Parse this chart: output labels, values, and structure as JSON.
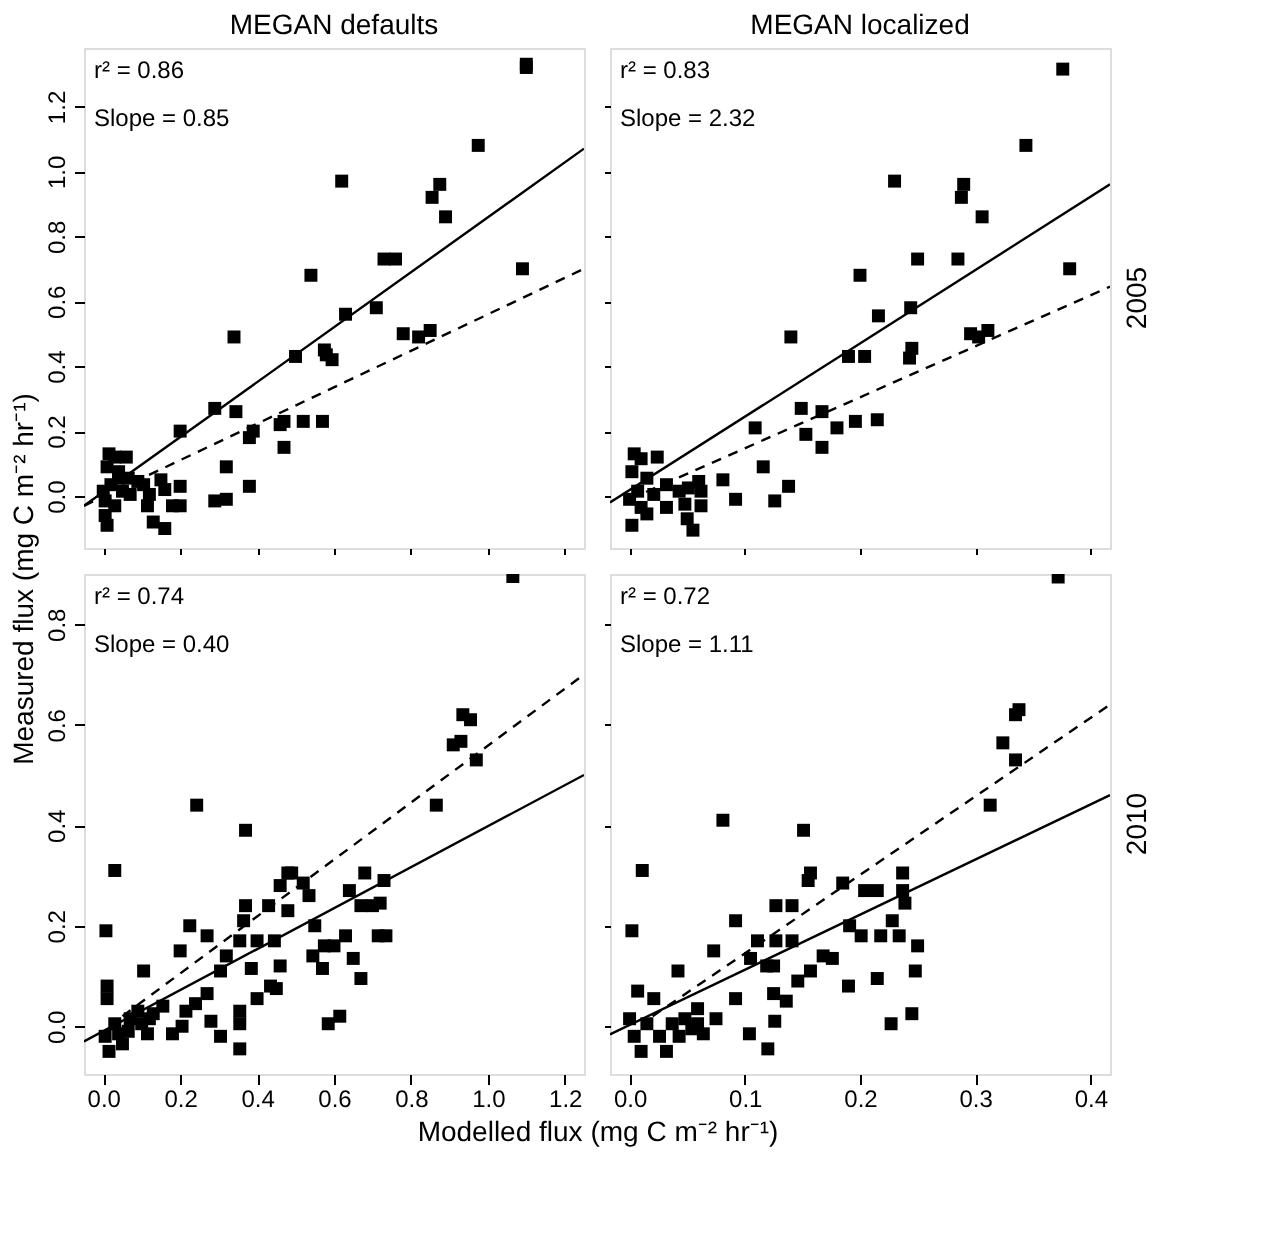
{
  "chart_data": [
    {
      "type": "scatter",
      "title": "MEGAN defaults",
      "ylabel": "Measured flux  (mg C m⁻² hr⁻¹)",
      "xlim": [
        -0.05,
        1.25
      ],
      "ylim": [
        -0.16,
        1.38
      ],
      "xticks": [
        {
          "value": 0,
          "label": null
        },
        {
          "value": 0.2,
          "label": null
        },
        {
          "value": 0.4,
          "label": null
        },
        {
          "value": 0.6,
          "label": null
        },
        {
          "value": 0.8,
          "label": null
        },
        {
          "value": 1.0,
          "label": null
        },
        {
          "value": 1.2,
          "label": null
        }
      ],
      "yticks": [
        {
          "value": 0,
          "label": "0.0"
        },
        {
          "value": 0.2,
          "label": "0.2"
        },
        {
          "value": 0.4,
          "label": "0.4"
        },
        {
          "value": 0.6,
          "label": "0.6"
        },
        {
          "value": 0.8,
          "label": "0.8"
        },
        {
          "value": 1.0,
          "label": "1.0"
        },
        {
          "value": 1.2,
          "label": "1.2"
        }
      ],
      "tick_labels": "y",
      "grid": false,
      "marker": "square",
      "annotations": [
        "r² = 0.86",
        "Slope = 0.85"
      ],
      "series": [
        {
          "color": "#000000",
          "x": [
            1.1,
            1.1,
            0.975,
            0.62,
            0.875,
            0.855,
            0.89,
            0.73,
            0.76,
            1.09,
            0.54,
            0.71,
            0.63,
            0.78,
            0.82,
            0.85,
            0.34,
            0.5,
            0.575,
            0.58,
            0.595,
            0.47,
            0.52,
            0.57,
            0.46,
            0.29,
            0.345,
            0.2,
            0.39,
            0.38,
            0.47,
            0.32,
            0.38,
            0.29,
            0.32,
            0.16,
            0.18,
            0.2,
            0.13,
            0.16,
            0.01,
            0.005,
            0.015,
            0.03,
            0.06,
            0.01,
            0.04,
            0.02,
            0.05,
            0.07,
            0.105,
            0.12,
            0.15,
            0.005,
            0.03,
            0.115,
            0.04,
            0.065,
            0.09,
            0.0,
            0.2
          ],
          "values": [
            1.32,
            1.33,
            1.08,
            0.97,
            0.96,
            0.92,
            0.86,
            0.73,
            0.73,
            0.7,
            0.68,
            0.58,
            0.56,
            0.5,
            0.49,
            0.51,
            0.49,
            0.43,
            0.45,
            0.435,
            0.42,
            0.23,
            0.23,
            0.23,
            0.22,
            0.27,
            0.26,
            0.2,
            0.2,
            0.18,
            0.15,
            0.09,
            0.03,
            -0.015,
            -0.01,
            0.02,
            -0.03,
            0.03,
            -0.08,
            -0.1,
            -0.09,
            -0.06,
            0.13,
            0.12,
            0.12,
            0.09,
            0.075,
            0.035,
            0.015,
            0.005,
            0.035,
            0.005,
            0.05,
            -0.015,
            -0.03,
            -0.03,
            0.055,
            0.055,
            0.045,
            0.015,
            -0.03
          ]
        },
        {
          "type": "line",
          "marker": "none",
          "line_style": "solid",
          "color": "#000000",
          "x": [
            -0.05,
            1.25
          ],
          "values": [
            -0.03,
            1.07
          ]
        },
        {
          "type": "line",
          "marker": "none",
          "line_style": "dashed",
          "color": "#000000",
          "x": [
            -0.05,
            1.25
          ],
          "values": [
            -0.03,
            0.7
          ]
        }
      ]
    },
    {
      "type": "scatter",
      "title": "MEGAN localized",
      "y2label": "2005",
      "xlim": [
        -0.017,
        0.417
      ],
      "ylim": [
        -0.16,
        1.38
      ],
      "xticks": [
        {
          "value": 0,
          "label": null
        },
        {
          "value": 0.1,
          "label": null
        },
        {
          "value": 0.2,
          "label": null
        },
        {
          "value": 0.3,
          "label": null
        },
        {
          "value": 0.4,
          "label": null
        }
      ],
      "yticks": [
        {
          "value": 0,
          "label": null
        },
        {
          "value": 0.2,
          "label": null
        },
        {
          "value": 0.4,
          "label": null
        },
        {
          "value": 0.6,
          "label": null
        },
        {
          "value": 0.8,
          "label": null
        },
        {
          "value": 1.0,
          "label": null
        },
        {
          "value": 1.2,
          "label": null
        }
      ],
      "tick_labels": false,
      "grid": false,
      "marker": "square",
      "annotations": [
        "r² = 0.83",
        "Slope = 2.32"
      ],
      "series": [
        {
          "color": "#000000",
          "x": [
            0.376,
            0.344,
            0.23,
            0.29,
            0.288,
            0.306,
            0.25,
            0.285,
            0.382,
            0.2,
            0.244,
            0.216,
            0.296,
            0.303,
            0.311,
            0.14,
            0.19,
            0.204,
            0.245,
            0.243,
            0.149,
            0.109,
            0.167,
            0.18,
            0.196,
            0.215,
            0.153,
            0.167,
            0.116,
            0.081,
            0.092,
            0.126,
            0.138,
            0.002,
            0.05,
            0.055,
            0.004,
            0.01,
            0.024,
            0.002,
            0.015,
            0.007,
            0.021,
            0.032,
            0.043,
            0.051,
            0.062,
            0.032,
            0.048,
            0.062,
            0.01,
            0.0,
            0.015,
            0.06
          ],
          "values": [
            1.315,
            1.08,
            0.97,
            0.96,
            0.92,
            0.86,
            0.73,
            0.73,
            0.7,
            0.68,
            0.58,
            0.555,
            0.5,
            0.49,
            0.51,
            0.49,
            0.43,
            0.43,
            0.455,
            0.425,
            0.27,
            0.21,
            0.26,
            0.21,
            0.23,
            0.235,
            0.19,
            0.15,
            0.09,
            0.05,
            -0.01,
            -0.015,
            0.03,
            -0.09,
            -0.07,
            -0.105,
            0.13,
            0.115,
            0.12,
            0.075,
            0.055,
            0.015,
            0.005,
            0.035,
            0.015,
            0.025,
            0.015,
            -0.035,
            -0.025,
            -0.03,
            -0.035,
            -0.01,
            -0.055,
            0.045
          ]
        },
        {
          "type": "line",
          "marker": "none",
          "line_style": "solid",
          "color": "#000000",
          "x": [
            -0.017,
            0.417
          ],
          "values": [
            -0.02,
            0.96
          ]
        },
        {
          "type": "line",
          "marker": "none",
          "line_style": "dashed",
          "color": "#000000",
          "x": [
            0.0,
            0.417
          ],
          "values": [
            -0.01,
            0.645
          ]
        }
      ]
    },
    {
      "type": "scatter",
      "xlabel": "Modelled flux  (mg C m⁻² hr⁻¹)",
      "xlim": [
        -0.05,
        1.25
      ],
      "ylim": [
        -0.095,
        0.9
      ],
      "xticks": [
        {
          "value": 0,
          "label": "0.0"
        },
        {
          "value": 0.2,
          "label": "0.2"
        },
        {
          "value": 0.4,
          "label": "0.4"
        },
        {
          "value": 0.6,
          "label": "0.6"
        },
        {
          "value": 0.8,
          "label": "0.8"
        },
        {
          "value": 1.0,
          "label": "1.0"
        },
        {
          "value": 1.2,
          "label": "1.2"
        }
      ],
      "yticks": [
        {
          "value": 0,
          "label": "0.0"
        },
        {
          "value": 0.2,
          "label": "0.2"
        },
        {
          "value": 0.4,
          "label": "0.4"
        },
        {
          "value": 0.6,
          "label": "0.6"
        },
        {
          "value": 0.8,
          "label": "0.8"
        }
      ],
      "grid": false,
      "marker": "square",
      "annotations": [
        "r² = 0.74",
        "Slope = 0.40"
      ],
      "series": [
        {
          "color": "#000000",
          "x": [
            1.065,
            0.91,
            0.93,
            0.935,
            0.955,
            0.97,
            0.866,
            0.243,
            0.37,
            0.03,
            0.007,
            0.225,
            0.27,
            0.2,
            0.37,
            0.365,
            0.32,
            0.355,
            0.4,
            0.445,
            0.43,
            0.48,
            0.48,
            0.49,
            0.46,
            0.52,
            0.535,
            0.55,
            0.545,
            0.57,
            0.575,
            0.6,
            0.63,
            0.64,
            0.68,
            0.67,
            0.7,
            0.72,
            0.73,
            0.715,
            0.735,
            0.67,
            0.65,
            0.585,
            0.615,
            0.46,
            0.45,
            0.4,
            0.435,
            0.385,
            0.355,
            0.355,
            0.355,
            0.305,
            0.27,
            0.305,
            0.28,
            0.24,
            0.215,
            0.205,
            0.18,
            0.155,
            0.105,
            0.13,
            0.01,
            0.01,
            0.03,
            0.04,
            0.015,
            0.05,
            0.065,
            0.07,
            0.1,
            0.115,
            0.09,
            0.005,
            0.12
          ],
          "values": [
            0.895,
            0.56,
            0.567,
            0.62,
            0.61,
            0.53,
            0.44,
            0.44,
            0.39,
            0.31,
            0.19,
            0.2,
            0.18,
            0.15,
            0.24,
            0.21,
            0.14,
            0.17,
            0.17,
            0.17,
            0.24,
            0.23,
            0.305,
            0.305,
            0.28,
            0.285,
            0.26,
            0.2,
            0.14,
            0.115,
            0.16,
            0.16,
            0.18,
            0.27,
            0.305,
            0.24,
            0.24,
            0.245,
            0.29,
            0.18,
            0.18,
            0.095,
            0.135,
            0.005,
            0.02,
            0.12,
            0.075,
            0.055,
            0.08,
            0.115,
            0.005,
            -0.045,
            0.03,
            0.11,
            0.065,
            -0.02,
            0.01,
            0.045,
            0.03,
            0.0,
            -0.015,
            0.04,
            0.11,
            0.025,
            0.08,
            0.055,
            0.005,
            -0.015,
            -0.05,
            -0.035,
            -0.01,
            0.015,
            0.005,
            -0.015,
            0.03,
            -0.02,
            0.015
          ]
        },
        {
          "type": "line",
          "marker": "none",
          "line_style": "solid",
          "color": "#000000",
          "x": [
            -0.05,
            1.25
          ],
          "values": [
            -0.03,
            0.5
          ]
        },
        {
          "type": "line",
          "marker": "none",
          "line_style": "dashed",
          "color": "#000000",
          "x": [
            0.05,
            1.25
          ],
          "values": [
            0.02,
            0.7
          ]
        }
      ]
    },
    {
      "type": "scatter",
      "y2label": "2010",
      "xlim": [
        -0.017,
        0.417
      ],
      "ylim": [
        -0.095,
        0.9
      ],
      "xticks": [
        {
          "value": 0,
          "label": "0.0"
        },
        {
          "value": 0.1,
          "label": "0.1"
        },
        {
          "value": 0.2,
          "label": "0.2"
        },
        {
          "value": 0.3,
          "label": "0.3"
        },
        {
          "value": 0.4,
          "label": "0.4"
        }
      ],
      "yticks": [
        {
          "value": 0,
          "label": null
        },
        {
          "value": 0.2,
          "label": null
        },
        {
          "value": 0.4,
          "label": null
        },
        {
          "value": 0.6,
          "label": null
        },
        {
          "value": 0.8,
          "label": null
        }
      ],
      "tick_labels": "x",
      "grid": false,
      "marker": "square",
      "annotations": [
        "r² = 0.72",
        "Slope = 1.11"
      ],
      "series": [
        {
          "color": "#000000",
          "x": [
            0.372,
            0.335,
            0.338,
            0.324,
            0.335,
            0.313,
            0.081,
            0.151,
            0.011,
            0.002,
            0.155,
            0.157,
            0.185,
            0.204,
            0.215,
            0.237,
            0.237,
            0.239,
            0.127,
            0.141,
            0.191,
            0.228,
            0.092,
            0.111,
            0.127,
            0.141,
            0.201,
            0.218,
            0.234,
            0.25,
            0.248,
            0.073,
            0.105,
            0.119,
            0.168,
            0.176,
            0.157,
            0.146,
            0.136,
            0.125,
            0.126,
            0.12,
            0.104,
            0.092,
            0.075,
            0.059,
            0.042,
            0.125,
            0.19,
            0.215,
            0.227,
            0.245,
            0.0,
            0.004,
            0.01,
            0.015,
            0.021,
            0.026,
            0.032,
            0.037,
            0.043,
            0.048,
            0.054,
            0.064,
            0.007,
            0.059
          ],
          "values": [
            0.894,
            0.62,
            0.63,
            0.564,
            0.53,
            0.44,
            0.41,
            0.39,
            0.31,
            0.19,
            0.29,
            0.305,
            0.285,
            0.27,
            0.27,
            0.305,
            0.27,
            0.245,
            0.24,
            0.24,
            0.2,
            0.21,
            0.21,
            0.17,
            0.17,
            0.17,
            0.18,
            0.18,
            0.18,
            0.16,
            0.11,
            0.15,
            0.135,
            0.12,
            0.14,
            0.135,
            0.11,
            0.09,
            0.05,
            0.065,
            0.01,
            -0.045,
            -0.015,
            0.055,
            0.015,
            0.035,
            0.11,
            0.12,
            0.08,
            0.095,
            0.005,
            0.025,
            0.015,
            -0.02,
            -0.05,
            0.005,
            0.055,
            -0.02,
            -0.05,
            0.005,
            -0.02,
            0.015,
            -0.005,
            -0.015,
            0.07,
            0.005
          ]
        },
        {
          "type": "line",
          "marker": "none",
          "line_style": "solid",
          "color": "#000000",
          "x": [
            -0.017,
            0.417
          ],
          "values": [
            -0.016,
            0.46
          ]
        },
        {
          "type": "line",
          "marker": "none",
          "line_style": "dashed",
          "color": "#000000",
          "x": [
            0.02,
            0.417
          ],
          "values": [
            0.02,
            0.64
          ]
        }
      ]
    }
  ]
}
